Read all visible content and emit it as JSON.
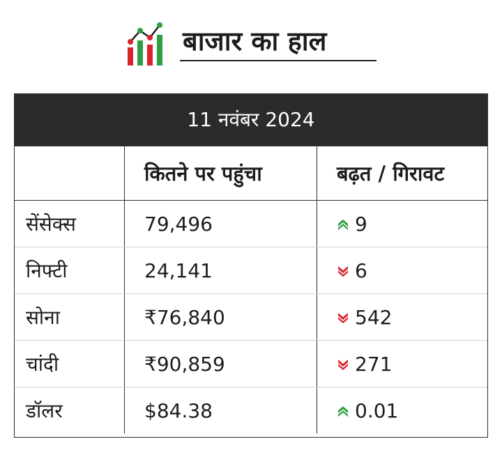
{
  "header": {
    "title": "बाजार का हाल",
    "logo_icon": "rising-bar-chart-icon"
  },
  "table": {
    "date": "11 नवंबर 2024",
    "columns": [
      "",
      "कितने पर पहुंचा",
      "बढ़त / गिरावट"
    ],
    "rows": [
      {
        "name": "सेंसेक्स",
        "value": "79,496",
        "change": "9",
        "direction": "up"
      },
      {
        "name": "निफ्टी",
        "value": "24,141",
        "change": "6",
        "direction": "down"
      },
      {
        "name": "सोना",
        "value": "₹76,840",
        "change": "542",
        "direction": "down"
      },
      {
        "name": "चांदी",
        "value": "₹90,859",
        "change": "271",
        "direction": "down"
      },
      {
        "name": "डॉलर",
        "value": "$84.38",
        "change": "0.01",
        "direction": "up"
      }
    ]
  },
  "colors": {
    "up": "#2e9e44",
    "down": "#d9232d",
    "header_bg": "#2b2b2b"
  }
}
